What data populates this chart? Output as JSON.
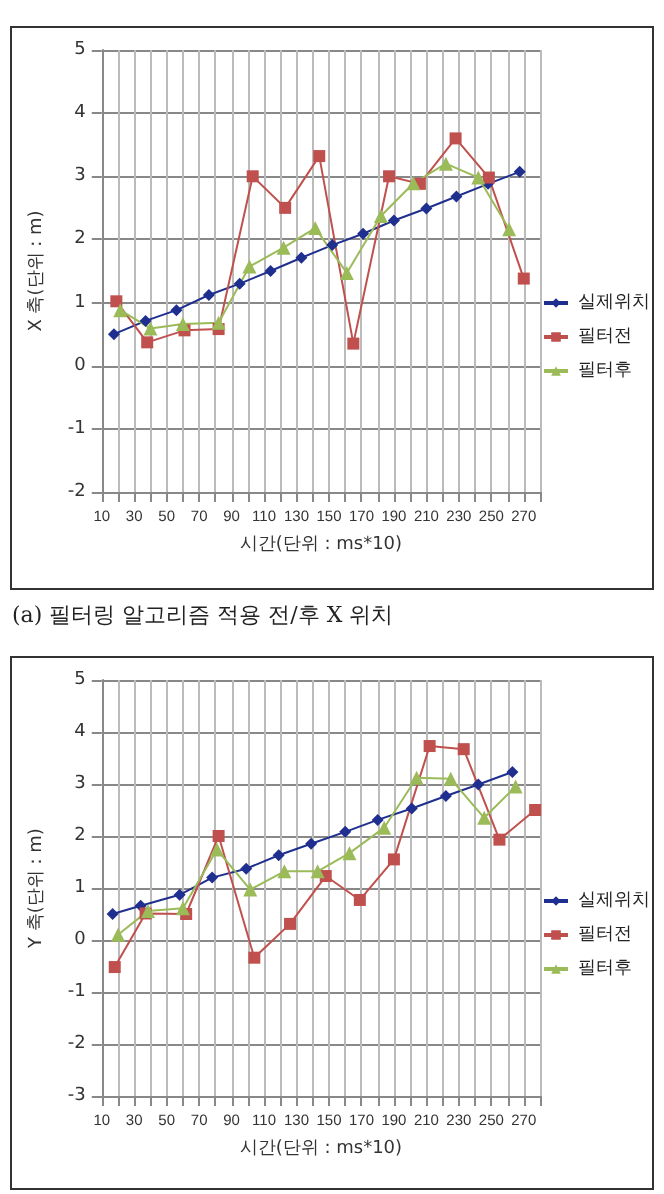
{
  "chart_data": [
    {
      "type": "line",
      "xlabel": "시간(단위 : ms*10)",
      "ylabel": "X 축(단위 : m)",
      "annotations": [
        "(a) 필터링 알고리즘 적용 전/후 X 위치"
      ],
      "xlim": [
        10,
        280
      ],
      "xticks": [
        10,
        {
          "value": 20,
          "label": null
        },
        30,
        {
          "value": 40,
          "label": null
        },
        50,
        {
          "value": 60,
          "label": null
        },
        70,
        {
          "value": 80,
          "label": null
        },
        90,
        {
          "value": 100,
          "label": null
        },
        110,
        {
          "value": 120,
          "label": null
        },
        130,
        {
          "value": 140,
          "label": null
        },
        150,
        {
          "value": 160,
          "label": null
        },
        170,
        {
          "value": 180,
          "label": null
        },
        190,
        {
          "value": 200,
          "label": null
        },
        210,
        {
          "value": 220,
          "label": null
        },
        230,
        {
          "value": 240,
          "label": null
        },
        250,
        {
          "value": 260,
          "label": null
        },
        270,
        {
          "value": 280,
          "label": null
        }
      ],
      "ylim": [
        -2,
        5
      ],
      "yticks": [
        -2,
        -1,
        0,
        1,
        2,
        3,
        4,
        5
      ],
      "grid": true,
      "legend": "right",
      "series": [
        {
          "name": "실제위치",
          "color": "#1f2f8f",
          "marker": "diamond",
          "x": [
            17.5,
            37,
            56,
            76,
            95,
            114,
            133,
            152,
            171,
            190,
            210,
            228.5,
            248,
            267.5
          ],
          "values": [
            0.5,
            0.71,
            0.88,
            1.12,
            1.3,
            1.5,
            1.71,
            1.91,
            2.09,
            2.3,
            2.49,
            2.68,
            2.88,
            3.07
          ]
        },
        {
          "name": "필터전",
          "color": "#c0504d",
          "marker": "square",
          "x": [
            19,
            38,
            61,
            82,
            103,
            123,
            144,
            165,
            187,
            206,
            228,
            248.5,
            270
          ],
          "values": [
            1.02,
            0.37,
            0.56,
            0.58,
            3.0,
            2.5,
            3.32,
            0.35,
            3.0,
            2.88,
            3.6,
            2.98,
            1.38
          ]
        },
        {
          "name": "필터후",
          "color": "#9bbb59",
          "marker": "triangle",
          "x": [
            21.4,
            40,
            60,
            82,
            101,
            122,
            141.5,
            161,
            182,
            202,
            222,
            242,
            261
          ],
          "values": [
            0.88,
            0.59,
            0.66,
            0.68,
            1.57,
            1.87,
            2.18,
            1.47,
            2.37,
            2.89,
            3.2,
            2.98,
            2.16
          ]
        }
      ]
    },
    {
      "type": "line",
      "xlabel": "시간(단위 : ms*10)",
      "ylabel": "Y 축(단위 : m)",
      "xlim": [
        10,
        280
      ],
      "xticks": [
        10,
        {
          "value": 20,
          "label": null
        },
        30,
        {
          "value": 40,
          "label": null
        },
        50,
        {
          "value": 60,
          "label": null
        },
        70,
        {
          "value": 80,
          "label": null
        },
        90,
        {
          "value": 100,
          "label": null
        },
        110,
        {
          "value": 120,
          "label": null
        },
        130,
        {
          "value": 140,
          "label": null
        },
        150,
        {
          "value": 160,
          "label": null
        },
        170,
        {
          "value": 180,
          "label": null
        },
        190,
        {
          "value": 200,
          "label": null
        },
        210,
        {
          "value": 220,
          "label": null
        },
        230,
        {
          "value": 240,
          "label": null
        },
        250,
        {
          "value": 260,
          "label": null
        },
        270,
        {
          "value": 280,
          "label": null
        }
      ],
      "ylim": [
        -3,
        5
      ],
      "yticks": [
        -3,
        -2,
        -1,
        0,
        1,
        2,
        3,
        4,
        5
      ],
      "grid": true,
      "legend": "right",
      "series": [
        {
          "name": "실제위치",
          "color": "#1f2f8f",
          "marker": "diamond",
          "x": [
            16.7,
            34,
            58,
            78,
            99,
            119,
            139,
            160,
            180,
            201,
            222,
            242,
            263
          ],
          "values": [
            0.5,
            0.66,
            0.87,
            1.2,
            1.37,
            1.63,
            1.85,
            2.08,
            2.31,
            2.53,
            2.77,
            2.99,
            3.23
          ]
        },
        {
          "name": "필터전",
          "color": "#c0504d",
          "marker": "square",
          "x": [
            18,
            37,
            62,
            82,
            104,
            126,
            148,
            169,
            190,
            212,
            233,
            255,
            277
          ],
          "values": [
            -0.52,
            0.51,
            0.5,
            2.0,
            -0.34,
            0.31,
            1.23,
            0.77,
            1.55,
            3.73,
            3.67,
            1.93,
            2.5
          ]
        },
        {
          "name": "필터후",
          "color": "#9bbb59",
          "marker": "triangle",
          "x": [
            20,
            38.5,
            60,
            81,
            101.5,
            122.5,
            143,
            162.6,
            184,
            204,
            225,
            245.6,
            265
          ],
          "values": [
            0.1,
            0.56,
            0.61,
            1.74,
            0.97,
            1.32,
            1.32,
            1.67,
            2.16,
            3.12,
            3.1,
            2.35,
            2.95
          ]
        }
      ]
    }
  ]
}
